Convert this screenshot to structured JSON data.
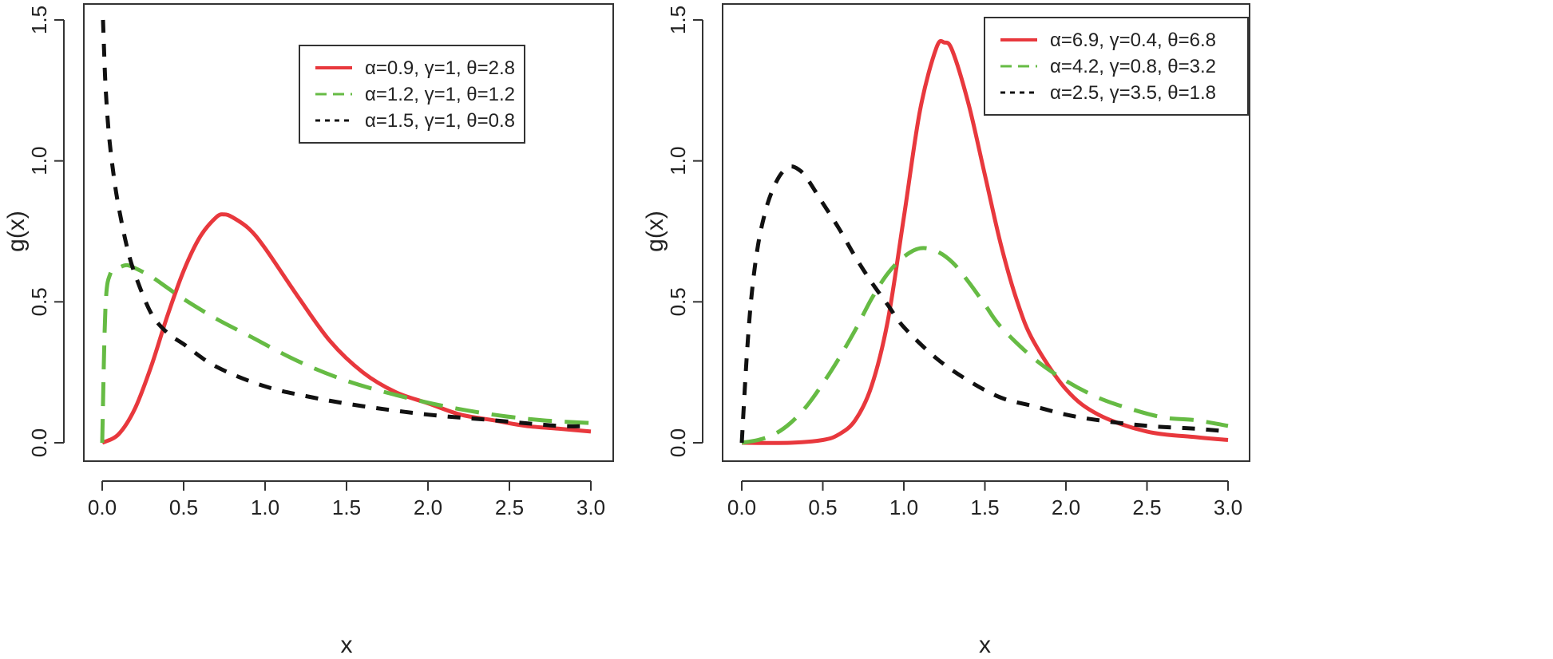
{
  "chart_data": [
    {
      "type": "line",
      "xlabel": "x",
      "ylabel": "g(x)",
      "xlim": [
        0.0,
        3.0
      ],
      "ylim": [
        0.0,
        1.5
      ],
      "xticks": [
        "0.0",
        "0.5",
        "1.0",
        "1.5",
        "2.0",
        "2.5",
        "3.0"
      ],
      "yticks": [
        "0.0",
        "0.5",
        "1.0",
        "1.5"
      ],
      "legend_position": "top-right",
      "series": [
        {
          "name": "α=0.9, γ=1, θ=2.8",
          "color": "#e8383d",
          "style": "solid",
          "x": [
            0.0,
            0.1,
            0.2,
            0.3,
            0.4,
            0.5,
            0.6,
            0.7,
            0.75,
            0.8,
            0.9,
            1.0,
            1.2,
            1.4,
            1.6,
            1.8,
            2.0,
            2.2,
            2.4,
            2.6,
            2.8,
            3.0
          ],
          "y": [
            0.0,
            0.03,
            0.12,
            0.27,
            0.45,
            0.61,
            0.73,
            0.8,
            0.81,
            0.8,
            0.76,
            0.69,
            0.52,
            0.36,
            0.25,
            0.18,
            0.14,
            0.1,
            0.08,
            0.06,
            0.05,
            0.04
          ]
        },
        {
          "name": "α=1.2, γ=1, θ=1.2",
          "color": "#66bb44",
          "style": "dashed",
          "x": [
            0.0,
            0.02,
            0.05,
            0.1,
            0.15,
            0.2,
            0.3,
            0.4,
            0.5,
            0.7,
            0.9,
            1.2,
            1.5,
            1.8,
            2.1,
            2.4,
            2.7,
            3.0
          ],
          "y": [
            0.0,
            0.48,
            0.6,
            0.62,
            0.63,
            0.62,
            0.59,
            0.55,
            0.51,
            0.44,
            0.38,
            0.29,
            0.22,
            0.17,
            0.13,
            0.1,
            0.08,
            0.07
          ]
        },
        {
          "name": "α=1.5, γ=1, θ=0.8",
          "color": "#111111",
          "style": "dotted",
          "x": [
            0.005,
            0.01,
            0.02,
            0.04,
            0.07,
            0.1,
            0.15,
            0.2,
            0.3,
            0.4,
            0.5,
            0.7,
            1.0,
            1.3,
            1.6,
            2.0,
            2.4,
            2.8,
            3.0
          ],
          "y": [
            1.5,
            1.42,
            1.27,
            1.1,
            0.95,
            0.84,
            0.7,
            0.6,
            0.46,
            0.39,
            0.35,
            0.27,
            0.2,
            0.16,
            0.13,
            0.1,
            0.08,
            0.06,
            0.06
          ]
        }
      ]
    },
    {
      "type": "line",
      "xlabel": "x",
      "ylabel": "g(x)",
      "xlim": [
        0.0,
        3.0
      ],
      "ylim": [
        0.0,
        1.5
      ],
      "xticks": [
        "0.0",
        "0.5",
        "1.0",
        "1.5",
        "2.0",
        "2.5",
        "3.0"
      ],
      "yticks": [
        "0.0",
        "0.5",
        "1.0",
        "1.5"
      ],
      "legend_position": "top-right",
      "series": [
        {
          "name": "α=6.9, γ=0.4, θ=6.8",
          "color": "#e8383d",
          "style": "solid",
          "x": [
            0.0,
            0.3,
            0.5,
            0.6,
            0.7,
            0.8,
            0.9,
            1.0,
            1.1,
            1.2,
            1.25,
            1.3,
            1.4,
            1.5,
            1.6,
            1.7,
            1.8,
            2.0,
            2.2,
            2.5,
            2.8,
            3.0
          ],
          "y": [
            0.0,
            0.0,
            0.01,
            0.03,
            0.08,
            0.2,
            0.43,
            0.8,
            1.18,
            1.4,
            1.42,
            1.39,
            1.2,
            0.95,
            0.7,
            0.5,
            0.36,
            0.19,
            0.1,
            0.04,
            0.02,
            0.01
          ]
        },
        {
          "name": "α=4.2, γ=0.8, θ=3.2",
          "color": "#66bb44",
          "style": "dashed",
          "x": [
            0.0,
            0.1,
            0.2,
            0.3,
            0.4,
            0.5,
            0.6,
            0.7,
            0.8,
            0.9,
            1.0,
            1.1,
            1.2,
            1.3,
            1.4,
            1.5,
            1.6,
            1.8,
            2.0,
            2.2,
            2.4,
            2.6,
            2.8,
            3.0
          ],
          "y": [
            0.0,
            0.01,
            0.03,
            0.07,
            0.13,
            0.21,
            0.3,
            0.4,
            0.51,
            0.6,
            0.66,
            0.69,
            0.68,
            0.64,
            0.57,
            0.49,
            0.41,
            0.3,
            0.22,
            0.16,
            0.12,
            0.09,
            0.08,
            0.06
          ]
        },
        {
          "name": "α=2.5, γ=3.5, θ=1.8",
          "color": "#111111",
          "style": "dotted",
          "x": [
            0.0,
            0.03,
            0.06,
            0.1,
            0.15,
            0.2,
            0.25,
            0.3,
            0.35,
            0.4,
            0.5,
            0.6,
            0.7,
            0.8,
            0.9,
            1.0,
            1.2,
            1.4,
            1.6,
            1.8,
            2.0,
            2.2,
            2.5,
            2.8,
            3.0
          ],
          "y": [
            0.0,
            0.3,
            0.52,
            0.7,
            0.83,
            0.91,
            0.96,
            0.98,
            0.97,
            0.94,
            0.85,
            0.76,
            0.66,
            0.57,
            0.49,
            0.41,
            0.3,
            0.22,
            0.16,
            0.13,
            0.1,
            0.08,
            0.06,
            0.05,
            0.04
          ]
        }
      ]
    }
  ]
}
